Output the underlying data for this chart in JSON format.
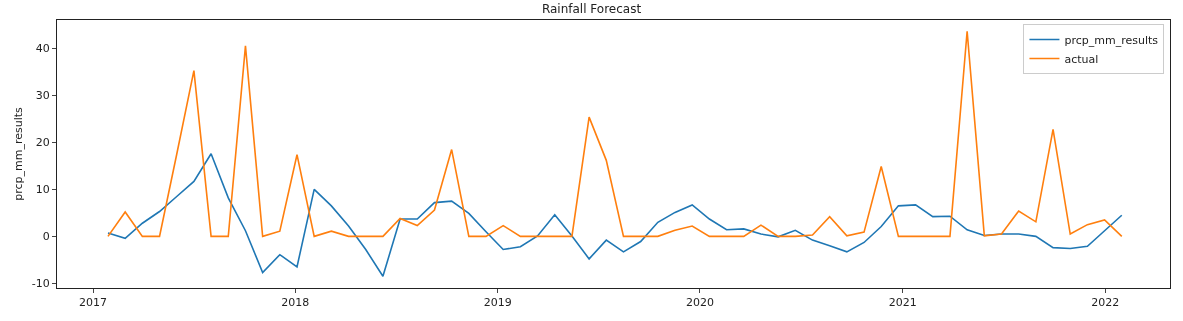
{
  "chart_data": {
    "type": "line",
    "title": "Rainfall Forecast",
    "ylabel": "prcp_mm_results",
    "x": [
      "2017-01-28",
      "2017-02-28",
      "2017-03-31",
      "2017-05-01",
      "2017-06-01",
      "2017-07-02",
      "2017-08-02",
      "2017-09-02",
      "2017-10-03",
      "2017-11-03",
      "2017-12-04",
      "2018-01-04",
      "2018-02-04",
      "2018-03-07",
      "2018-04-07",
      "2018-05-08",
      "2018-06-08",
      "2018-07-09",
      "2018-08-09",
      "2018-09-09",
      "2018-10-10",
      "2018-11-10",
      "2018-12-11",
      "2019-01-11",
      "2019-02-11",
      "2019-03-14",
      "2019-04-14",
      "2019-05-15",
      "2019-06-15",
      "2019-07-16",
      "2019-08-16",
      "2019-09-16",
      "2019-10-17",
      "2019-11-17",
      "2019-12-18",
      "2020-01-18",
      "2020-02-18",
      "2020-03-20",
      "2020-04-20",
      "2020-05-21",
      "2020-06-21",
      "2020-07-22",
      "2020-08-22",
      "2020-09-22",
      "2020-10-23",
      "2020-11-23",
      "2020-12-24",
      "2021-01-24",
      "2021-02-24",
      "2021-03-27",
      "2021-04-27",
      "2021-05-28",
      "2021-06-28",
      "2021-07-29",
      "2021-08-29",
      "2021-09-29",
      "2021-10-30",
      "2021-11-30",
      "2021-12-31",
      "2022-01-31"
    ],
    "series": [
      {
        "name": "prcp_mm_results",
        "color": "#1f77b4",
        "values": [
          0.7,
          -0.4,
          2.8,
          5.3,
          8.5,
          11.7,
          17.6,
          8.2,
          1.2,
          -7.7,
          -3.9,
          -6.5,
          10.0,
          6.5,
          2.2,
          -2.8,
          -8.5,
          3.7,
          3.7,
          7.2,
          7.5,
          4.9,
          1.0,
          -2.8,
          -2.2,
          0.1,
          4.6,
          0.1,
          -4.8,
          -0.8,
          -3.3,
          -1.1,
          3.0,
          5.1,
          6.7,
          3.7,
          1.4,
          1.6,
          0.5,
          -0.1,
          1.3,
          -0.8,
          -2.0,
          -3.3,
          -1.3,
          2.1,
          6.5,
          6.7,
          4.2,
          4.3,
          1.4,
          0.2,
          0.5,
          0.5,
          0,
          -2.4,
          -2.6,
          -2.1,
          1.2,
          4.5
        ]
      },
      {
        "name": "actual",
        "color": "#ff7f0e",
        "values": [
          0,
          5.2,
          0,
          0,
          17.5,
          35.3,
          0,
          0,
          40.6,
          0,
          1.1,
          17.4,
          0,
          1.1,
          0,
          0,
          0,
          3.8,
          2.3,
          5.6,
          18.5,
          0,
          0,
          2.3,
          0,
          0,
          0,
          0,
          25.4,
          16.2,
          0,
          0,
          0,
          1.3,
          2.2,
          0,
          0,
          0,
          2.4,
          0,
          0,
          0.3,
          4.2,
          0.1,
          0.9,
          14.9,
          0,
          0,
          0,
          0,
          43.7,
          0.1,
          0.5,
          5.4,
          3.1,
          22.8,
          0.5,
          2.5,
          3.5,
          0
        ]
      }
    ],
    "xlim": [
      "2016-10-28",
      "2022-04-28"
    ],
    "xticks": [
      {
        "value": "2017-01-01",
        "label": "2017"
      },
      {
        "value": "2018-01-01",
        "label": "2018"
      },
      {
        "value": "2019-01-01",
        "label": "2019"
      },
      {
        "value": "2020-01-01",
        "label": "2020"
      },
      {
        "value": "2021-01-01",
        "label": "2021"
      },
      {
        "value": "2022-01-01",
        "label": "2022"
      }
    ],
    "ylim": [
      -11,
      46.1
    ],
    "yticks": [
      -10,
      0,
      10,
      20,
      30,
      40
    ],
    "legend": "top right",
    "marker": "none",
    "line_style": "solid"
  }
}
